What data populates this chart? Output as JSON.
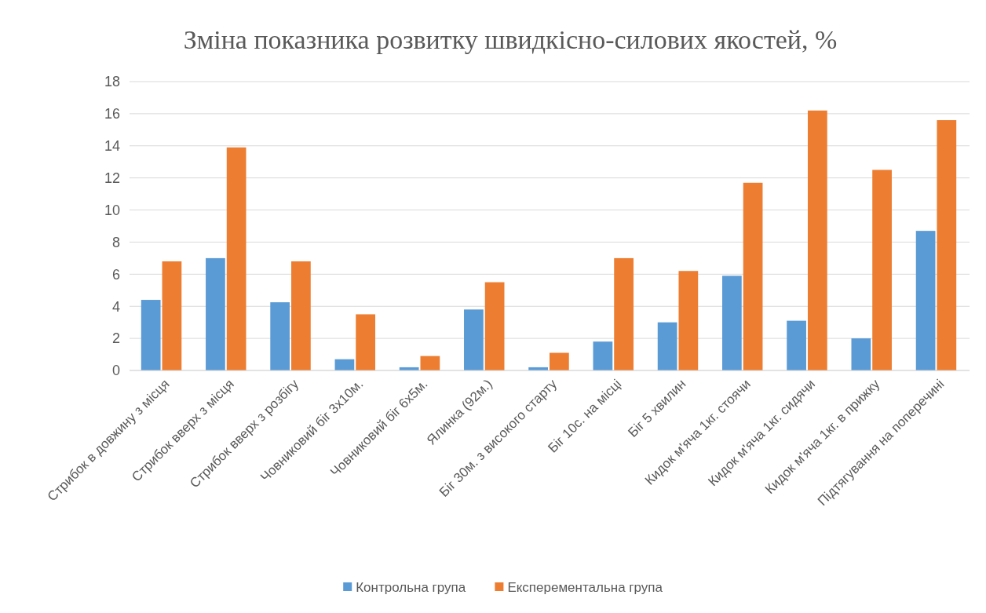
{
  "chart_data": {
    "type": "bar",
    "title": "Зміна показника розвитку швидкісно-силових якостей, %",
    "categories": [
      "Стрибок в довжину з місця",
      "Стрибок вверх з місця",
      "Стрибок вверх з розбігу",
      "Човниковий біг 3х10м.",
      "Човниковий біг 6х5м.",
      "Ялинка (92м.)",
      "Біг 30м. з високого старту",
      "Біг 10с. на місці",
      "Біг 5 хвилин",
      "Кидок м'яча 1кг. стоячи",
      "Кидок м'яча 1кг. сидячи",
      "Кидок м'яча 1кг. в прижку",
      "Підтягування на поперечині"
    ],
    "series": [
      {
        "name": "Контрольна група",
        "color": "#5b9bd5",
        "values": [
          4.4,
          7.0,
          4.25,
          0.7,
          0.2,
          3.8,
          0.2,
          1.8,
          3.0,
          5.9,
          3.1,
          2.0,
          8.7
        ]
      },
      {
        "name": "Експерементальна група",
        "color": "#ed7d31",
        "values": [
          6.8,
          13.9,
          6.8,
          3.5,
          0.9,
          5.5,
          1.1,
          7.0,
          6.2,
          11.7,
          16.2,
          12.5,
          15.6
        ]
      }
    ],
    "ylim": [
      0,
      18
    ],
    "yticks": [
      0,
      2,
      4,
      6,
      8,
      10,
      12,
      14,
      16,
      18
    ],
    "grid": "y",
    "legend": "bottom"
  }
}
